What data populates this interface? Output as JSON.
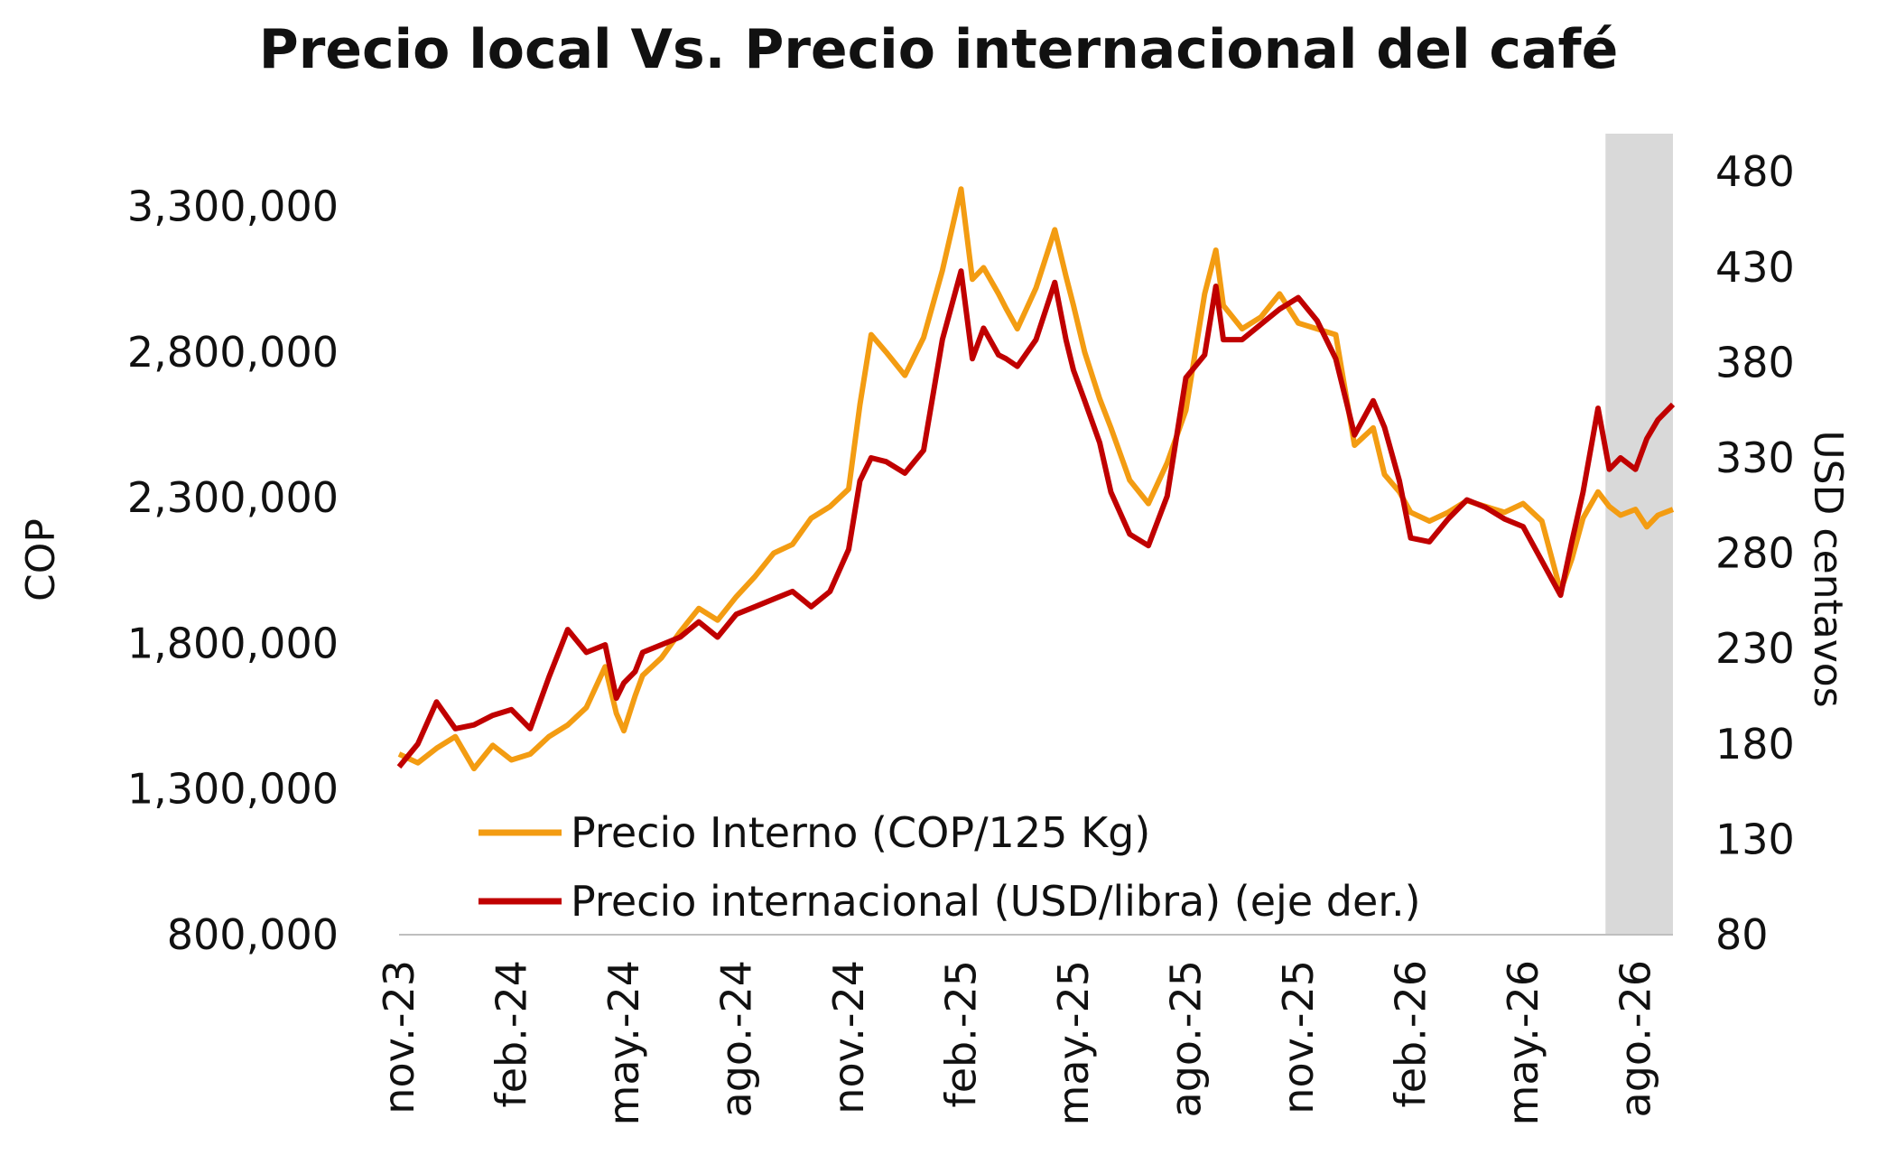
{
  "chart_data": {
    "type": "line",
    "title": "Precio local Vs. Precio internacional del café",
    "ylabel": "COP",
    "y2label": "USD centavos",
    "ylim": [
      800000,
      3550000
    ],
    "y2lim": [
      80,
      500
    ],
    "y_ticks": [
      800000,
      1300000,
      1800000,
      2300000,
      2800000,
      3300000
    ],
    "y_tick_labels": [
      "800,000",
      "1,300,000",
      "1,800,000",
      "2,300,000",
      "2,800,000",
      "3,300,000"
    ],
    "y2_ticks": [
      80,
      130,
      180,
      230,
      280,
      330,
      380,
      430,
      480
    ],
    "y2_tick_labels": [
      "80",
      "130",
      "180",
      "230",
      "280",
      "330",
      "380",
      "430",
      "480"
    ],
    "x_tick_labels": [
      "nov.-23",
      "feb.-24",
      "may.-24",
      "ago.-24",
      "nov.-24",
      "feb.-25",
      "may.-25",
      "ago.-25",
      "nov.-25",
      "feb.-26",
      "may.-26",
      "ago.-26"
    ],
    "x_range_months": [
      0,
      34
    ],
    "shaded_region": [
      32.2,
      34
    ],
    "legend_position": "bottom-left",
    "grid": false,
    "series": [
      {
        "name": "Precio Interno (COP/125 Kg)",
        "axis": "left",
        "color": "#F39C12",
        "x": [
          0,
          0.5,
          1,
          1.5,
          2,
          2.5,
          3,
          3.5,
          4,
          4.5,
          5,
          5.5,
          5.8,
          6,
          6.3,
          6.5,
          7,
          7.5,
          8,
          8.5,
          9,
          9.5,
          10,
          10.5,
          11,
          11.5,
          12,
          12.3,
          12.6,
          13,
          13.5,
          14,
          14.5,
          15,
          15.3,
          15.6,
          16,
          16.2,
          16.5,
          17,
          17.5,
          17.8,
          18,
          18.3,
          18.7,
          19,
          19.5,
          20,
          20.5,
          21,
          21.5,
          21.8,
          22,
          22.5,
          23,
          23.5,
          24,
          24.5,
          25,
          25.5,
          26,
          26.3,
          26.7,
          27,
          27.5,
          28,
          28.5,
          29,
          29.5,
          30,
          30.5,
          31,
          31.3,
          31.6,
          32,
          32.3,
          32.6,
          33,
          33.3,
          33.6,
          34
        ],
        "values": [
          1420000,
          1390000,
          1440000,
          1480000,
          1370000,
          1450000,
          1400000,
          1420000,
          1480000,
          1520000,
          1580000,
          1720000,
          1560000,
          1500000,
          1620000,
          1690000,
          1750000,
          1840000,
          1920000,
          1880000,
          1960000,
          2030000,
          2110000,
          2140000,
          2230000,
          2270000,
          2330000,
          2620000,
          2860000,
          2800000,
          2720000,
          2850000,
          3080000,
          3360000,
          3050000,
          3090000,
          3000000,
          2950000,
          2880000,
          3020000,
          3220000,
          3060000,
          2960000,
          2800000,
          2640000,
          2540000,
          2360000,
          2280000,
          2420000,
          2600000,
          3000000,
          3150000,
          2960000,
          2880000,
          2920000,
          3000000,
          2900000,
          2880000,
          2860000,
          2480000,
          2540000,
          2380000,
          2320000,
          2250000,
          2220000,
          2250000,
          2290000,
          2270000,
          2250000,
          2280000,
          2220000,
          1980000,
          2090000,
          2230000,
          2320000,
          2270000,
          2240000,
          2260000,
          2200000,
          2240000,
          2260000
        ]
      },
      {
        "name": "Precio internacional (USD/libra) (eje der.)",
        "axis": "right",
        "color": "#C00000",
        "x": [
          0,
          0.5,
          1,
          1.5,
          2,
          2.5,
          3,
          3.5,
          4,
          4.5,
          5,
          5.5,
          5.8,
          6,
          6.3,
          6.5,
          7,
          7.5,
          8,
          8.5,
          9,
          9.5,
          10,
          10.5,
          11,
          11.5,
          12,
          12.3,
          12.6,
          13,
          13.5,
          14,
          14.5,
          15,
          15.3,
          15.6,
          16,
          16.2,
          16.5,
          17,
          17.5,
          17.8,
          18,
          18.3,
          18.7,
          19,
          19.5,
          20,
          20.5,
          21,
          21.5,
          21.8,
          22,
          22.5,
          23,
          23.5,
          24,
          24.5,
          25,
          25.5,
          26,
          26.3,
          26.7,
          27,
          27.5,
          28,
          28.5,
          29,
          29.5,
          30,
          30.5,
          31,
          31.3,
          31.6,
          32,
          32.3,
          32.6,
          33,
          33.3,
          33.6,
          34
        ],
        "values": [
          168,
          180,
          202,
          188,
          190,
          195,
          198,
          188,
          215,
          240,
          228,
          232,
          204,
          212,
          218,
          228,
          232,
          236,
          244,
          236,
          248,
          252,
          256,
          260,
          252,
          260,
          282,
          318,
          330,
          328,
          322,
          334,
          392,
          428,
          382,
          398,
          384,
          382,
          378,
          392,
          422,
          392,
          376,
          360,
          338,
          312,
          290,
          284,
          310,
          372,
          384,
          420,
          392,
          392,
          400,
          408,
          414,
          402,
          382,
          342,
          360,
          346,
          318,
          288,
          286,
          298,
          308,
          304,
          298,
          294,
          276,
          258,
          286,
          312,
          356,
          324,
          330,
          324,
          340,
          350,
          358
        ]
      }
    ]
  }
}
